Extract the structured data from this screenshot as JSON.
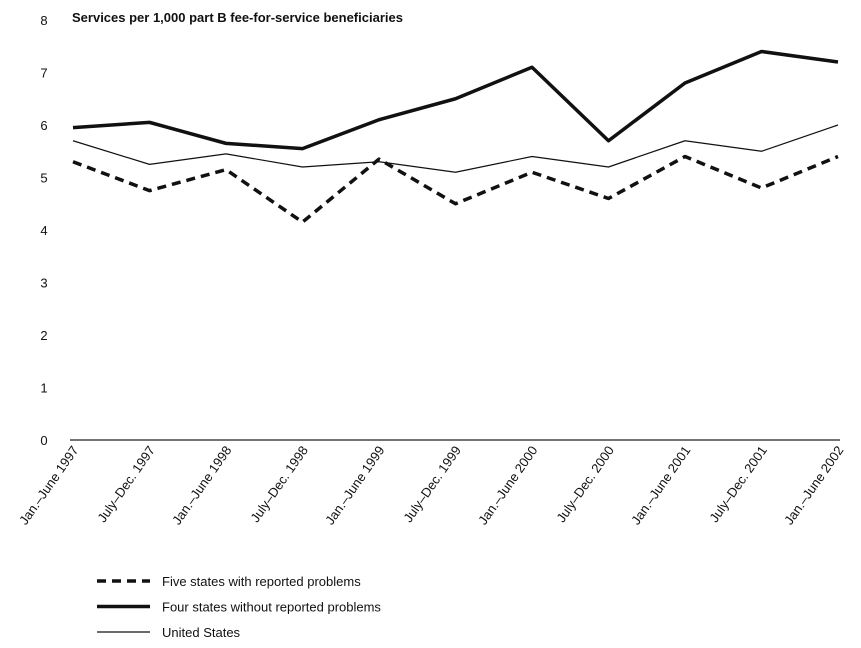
{
  "chart_data": {
    "type": "line",
    "title": "Services per 1,000 part B fee-for-service beneficiaries",
    "categories": [
      "Jan.–June 1997",
      "July–Dec. 1997",
      "Jan.–June 1998",
      "July–Dec. 1998",
      "Jan.–June 1999",
      "July–Dec. 1999",
      "Jan.–June 2000",
      "July–Dec. 2000",
      "Jan.–June 2001",
      "July–Dec. 2001",
      "Jan.–June 2002"
    ],
    "series": [
      {
        "name": "Five states with reported problems",
        "color": "#111111",
        "line_style": "dashed",
        "line_width": 3.5,
        "values": [
          5.3,
          4.75,
          5.15,
          4.15,
          5.35,
          4.5,
          5.1,
          4.6,
          5.4,
          4.8,
          5.4
        ]
      },
      {
        "name": "Four states without reported problems",
        "color": "#111111",
        "line_style": "solid",
        "line_width": 3.5,
        "values": [
          5.95,
          6.05,
          5.65,
          5.55,
          6.1,
          6.5,
          7.1,
          5.7,
          6.8,
          7.4,
          7.2
        ]
      },
      {
        "name": "United States",
        "color": "#111111",
        "line_style": "solid",
        "line_width": 1.2,
        "values": [
          5.7,
          5.25,
          5.45,
          5.2,
          5.3,
          5.1,
          5.4,
          5.2,
          5.7,
          5.5,
          6.0
        ]
      }
    ],
    "ylim": [
      0,
      8
    ],
    "yticks": [
      0,
      1,
      2,
      3,
      4,
      5,
      6,
      7,
      8
    ],
    "grid": false,
    "legend": "bottom-left"
  }
}
